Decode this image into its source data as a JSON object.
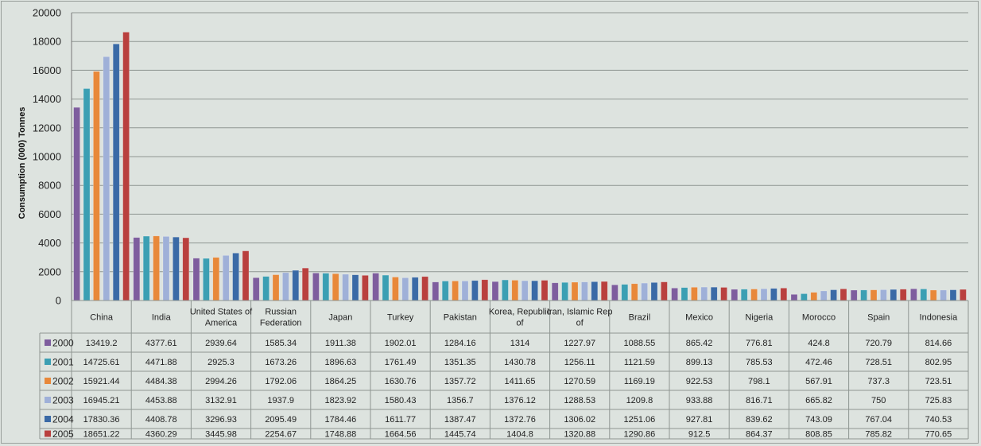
{
  "chart_data": {
    "type": "bar",
    "xlabel": "",
    "ylabel": "Consumption (000) Tonnes",
    "ylim": [
      0,
      20000
    ],
    "yticks": [
      "0",
      "2000",
      "4000",
      "6000",
      "8000",
      "10000",
      "12000",
      "14000",
      "16000",
      "18000",
      "20000"
    ],
    "grid": true,
    "legend_placement": "table-left",
    "categories": [
      [
        "China"
      ],
      [
        "India"
      ],
      [
        "United States of",
        "America"
      ],
      [
        "Russian",
        "Federation"
      ],
      [
        "Japan"
      ],
      [
        "Turkey"
      ],
      [
        "Pakistan"
      ],
      [
        "Korea, Republic",
        "of"
      ],
      [
        "Iran, Islamic Rep",
        "of"
      ],
      [
        "Brazil"
      ],
      [
        "Mexico"
      ],
      [
        "Nigeria"
      ],
      [
        "Morocco"
      ],
      [
        "Spain"
      ],
      [
        "Indonesia"
      ]
    ],
    "series": [
      {
        "name": "2000",
        "color": "#7e5d9e",
        "values": [
          13419.2,
          4377.61,
          2939.64,
          1585.34,
          1911.38,
          1902.01,
          1284.16,
          1314,
          1227.97,
          1088.55,
          865.42,
          776.81,
          424.8,
          720.79,
          814.66
        ],
        "labels": [
          "13419.2",
          "4377.61",
          "2939.64",
          "1585.34",
          "1911.38",
          "1902.01",
          "1284.16",
          "1314",
          "1227.97",
          "1088.55",
          "865.42",
          "776.81",
          "424.8",
          "720.79",
          "814.66"
        ]
      },
      {
        "name": "2001",
        "color": "#3b9fb3",
        "values": [
          14725.61,
          4471.88,
          2925.3,
          1673.26,
          1896.63,
          1761.49,
          1351.35,
          1430.78,
          1256.11,
          1121.59,
          899.13,
          785.53,
          472.46,
          728.51,
          802.95
        ],
        "labels": [
          "14725.61",
          "4471.88",
          "2925.3",
          "1673.26",
          "1896.63",
          "1761.49",
          "1351.35",
          "1430.78",
          "1256.11",
          "1121.59",
          "899.13",
          "785.53",
          "472.46",
          "728.51",
          "802.95"
        ]
      },
      {
        "name": "2002",
        "color": "#e8883a",
        "values": [
          15921.44,
          4484.38,
          2994.26,
          1792.06,
          1864.25,
          1630.76,
          1357.72,
          1411.65,
          1270.59,
          1169.19,
          922.53,
          798.1,
          567.91,
          737.3,
          723.51
        ],
        "labels": [
          "15921.44",
          "4484.38",
          "2994.26",
          "1792.06",
          "1864.25",
          "1630.76",
          "1357.72",
          "1411.65",
          "1270.59",
          "1169.19",
          "922.53",
          "798.1",
          "567.91",
          "737.3",
          "723.51"
        ]
      },
      {
        "name": "2003",
        "color": "#9fb0d8",
        "values": [
          16945.21,
          4453.88,
          3132.91,
          1937.9,
          1823.92,
          1580.43,
          1356.7,
          1376.12,
          1288.53,
          1209.8,
          933.88,
          816.71,
          665.82,
          750,
          725.83
        ],
        "labels": [
          "16945.21",
          "4453.88",
          "3132.91",
          "1937.9",
          "1823.92",
          "1580.43",
          "1356.7",
          "1376.12",
          "1288.53",
          "1209.8",
          "933.88",
          "816.71",
          "665.82",
          "750",
          "725.83"
        ]
      },
      {
        "name": "2004",
        "color": "#3a6aa6",
        "values": [
          17830.36,
          4408.78,
          3296.93,
          2095.49,
          1784.46,
          1611.77,
          1387.47,
          1372.76,
          1306.02,
          1251.06,
          927.81,
          839.62,
          743.09,
          767.04,
          740.53
        ],
        "labels": [
          "17830.36",
          "4408.78",
          "3296.93",
          "2095.49",
          "1784.46",
          "1611.77",
          "1387.47",
          "1372.76",
          "1306.02",
          "1251.06",
          "927.81",
          "839.62",
          "743.09",
          "767.04",
          "740.53"
        ]
      },
      {
        "name": "2005",
        "color": "#b9403e",
        "values": [
          18651.22,
          4360.29,
          3445.98,
          2254.67,
          1748.88,
          1664.56,
          1445.74,
          1404.8,
          1320.88,
          1290.86,
          912.5,
          864.37,
          808.85,
          785.82,
          770.65
        ],
        "labels": [
          "18651.22",
          "4360.29",
          "3445.98",
          "2254.67",
          "1748.88",
          "1664.56",
          "1445.74",
          "1404.8",
          "1320.88",
          "1290.86",
          "912.5",
          "864.37",
          "808.85",
          "785.82",
          "770.65"
        ]
      }
    ]
  }
}
